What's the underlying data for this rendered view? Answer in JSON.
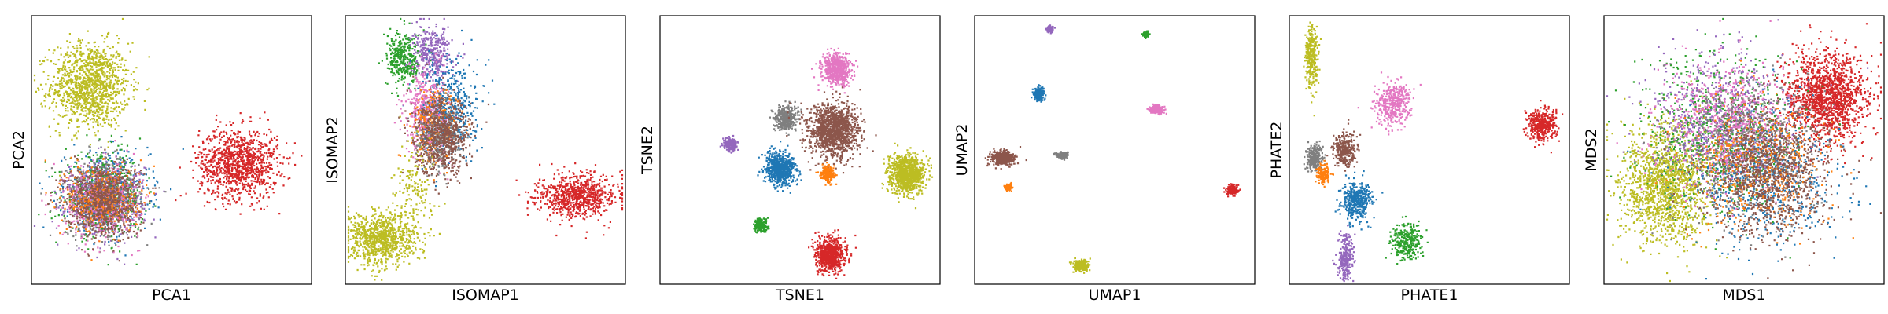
{
  "palette": {
    "blue": "#1f77b4",
    "orange": "#ff7f0e",
    "green": "#2ca02c",
    "red": "#d62728",
    "purple": "#9467bd",
    "brown": "#8c564b",
    "pink": "#e377c2",
    "gray": "#7f7f7f",
    "olive": "#bcbd22"
  },
  "chart_data": [
    {
      "type": "scatter",
      "xlabel": "PCA1",
      "ylabel": "PCA2",
      "ticks": "hidden",
      "grid": false,
      "clusters": [
        {
          "color": "olive",
          "cx": 0.21,
          "cy": 0.74,
          "sx": 0.07,
          "sy": 0.08,
          "n": 1200
        },
        {
          "color": "red",
          "cx": 0.74,
          "cy": 0.45,
          "sx": 0.07,
          "sy": 0.065,
          "n": 1100
        },
        {
          "color": "blue",
          "cx": 0.27,
          "cy": 0.34,
          "sx": 0.075,
          "sy": 0.075,
          "n": 500
        },
        {
          "color": "green",
          "cx": 0.26,
          "cy": 0.33,
          "sx": 0.07,
          "sy": 0.075,
          "n": 500
        },
        {
          "color": "purple",
          "cx": 0.26,
          "cy": 0.32,
          "sx": 0.07,
          "sy": 0.07,
          "n": 500
        },
        {
          "color": "gray",
          "cx": 0.25,
          "cy": 0.32,
          "sx": 0.07,
          "sy": 0.07,
          "n": 500
        },
        {
          "color": "pink",
          "cx": 0.25,
          "cy": 0.31,
          "sx": 0.068,
          "sy": 0.068,
          "n": 500
        },
        {
          "color": "orange",
          "cx": 0.26,
          "cy": 0.32,
          "sx": 0.065,
          "sy": 0.065,
          "n": 400
        },
        {
          "color": "brown",
          "cx": 0.25,
          "cy": 0.31,
          "sx": 0.065,
          "sy": 0.065,
          "n": 700
        }
      ]
    },
    {
      "type": "scatter",
      "xlabel": "ISOMAP1",
      "ylabel": "ISOMAP2",
      "ticks": "hidden",
      "grid": false,
      "clusters": [
        {
          "color": "green",
          "cx": 0.21,
          "cy": 0.84,
          "sx": 0.03,
          "sy": 0.05,
          "n": 350
        },
        {
          "color": "purple",
          "cx": 0.31,
          "cy": 0.86,
          "sx": 0.035,
          "sy": 0.05,
          "n": 350
        },
        {
          "color": "blue",
          "cx": 0.37,
          "cy": 0.66,
          "sx": 0.05,
          "sy": 0.09,
          "n": 500
        },
        {
          "color": "pink",
          "cx": 0.29,
          "cy": 0.64,
          "sx": 0.04,
          "sy": 0.08,
          "n": 400
        },
        {
          "color": "orange",
          "cx": 0.32,
          "cy": 0.59,
          "sx": 0.04,
          "sy": 0.07,
          "n": 250
        },
        {
          "color": "gray",
          "cx": 0.33,
          "cy": 0.55,
          "sx": 0.04,
          "sy": 0.06,
          "n": 300
        },
        {
          "color": "brown",
          "cx": 0.35,
          "cy": 0.55,
          "sx": 0.05,
          "sy": 0.07,
          "n": 700
        },
        {
          "color": "olive",
          "cx": 0.13,
          "cy": 0.17,
          "sx": 0.06,
          "sy": 0.05,
          "n": 900
        },
        {
          "color": "olive",
          "cx": 0.25,
          "cy": 0.36,
          "sx": 0.035,
          "sy": 0.09,
          "n": 150
        },
        {
          "color": "red",
          "cx": 0.83,
          "cy": 0.33,
          "sx": 0.07,
          "sy": 0.04,
          "n": 800
        }
      ]
    },
    {
      "type": "scatter",
      "xlabel": "TSNE1",
      "ylabel": "TSNE2",
      "ticks": "hidden",
      "grid": false,
      "clusters": [
        {
          "color": "pink",
          "cx": 0.63,
          "cy": 0.8,
          "sx": 0.025,
          "sy": 0.028,
          "n": 600
        },
        {
          "color": "gray",
          "cx": 0.45,
          "cy": 0.62,
          "sx": 0.02,
          "sy": 0.022,
          "n": 400
        },
        {
          "color": "brown",
          "cx": 0.62,
          "cy": 0.57,
          "sx": 0.045,
          "sy": 0.05,
          "n": 1300
        },
        {
          "color": "purple",
          "cx": 0.25,
          "cy": 0.52,
          "sx": 0.012,
          "sy": 0.013,
          "n": 200
        },
        {
          "color": "blue",
          "cx": 0.43,
          "cy": 0.43,
          "sx": 0.027,
          "sy": 0.03,
          "n": 700
        },
        {
          "color": "orange",
          "cx": 0.6,
          "cy": 0.41,
          "sx": 0.012,
          "sy": 0.014,
          "n": 200
        },
        {
          "color": "olive",
          "cx": 0.88,
          "cy": 0.41,
          "sx": 0.032,
          "sy": 0.035,
          "n": 900
        },
        {
          "color": "green",
          "cx": 0.36,
          "cy": 0.22,
          "sx": 0.012,
          "sy": 0.013,
          "n": 200
        },
        {
          "color": "red",
          "cx": 0.61,
          "cy": 0.11,
          "sx": 0.026,
          "sy": 0.03,
          "n": 700
        }
      ]
    },
    {
      "type": "scatter",
      "xlabel": "UMAP1",
      "ylabel": "UMAP2",
      "ticks": "hidden",
      "grid": false,
      "clusters": [
        {
          "color": "purple",
          "cx": 0.27,
          "cy": 0.95,
          "sx": 0.006,
          "sy": 0.006,
          "n": 100
        },
        {
          "color": "green",
          "cx": 0.61,
          "cy": 0.93,
          "sx": 0.006,
          "sy": 0.005,
          "n": 100
        },
        {
          "color": "blue",
          "cx": 0.23,
          "cy": 0.71,
          "sx": 0.01,
          "sy": 0.012,
          "n": 200
        },
        {
          "color": "pink",
          "cx": 0.65,
          "cy": 0.65,
          "sx": 0.012,
          "sy": 0.008,
          "n": 200
        },
        {
          "color": "brown",
          "cx": 0.1,
          "cy": 0.47,
          "sx": 0.02,
          "sy": 0.013,
          "n": 500
        },
        {
          "color": "gray",
          "cx": 0.31,
          "cy": 0.48,
          "sx": 0.01,
          "sy": 0.006,
          "n": 150
        },
        {
          "color": "orange",
          "cx": 0.12,
          "cy": 0.36,
          "sx": 0.006,
          "sy": 0.006,
          "n": 80
        },
        {
          "color": "red",
          "cx": 0.92,
          "cy": 0.35,
          "sx": 0.01,
          "sy": 0.01,
          "n": 200
        },
        {
          "color": "olive",
          "cx": 0.38,
          "cy": 0.07,
          "sx": 0.013,
          "sy": 0.01,
          "n": 250
        }
      ]
    },
    {
      "type": "scatter",
      "xlabel": "PHATE1",
      "ylabel": "PHATE2",
      "ticks": "hidden",
      "grid": false,
      "clusters": [
        {
          "color": "olive",
          "cx": 0.08,
          "cy": 0.84,
          "sx": 0.012,
          "sy": 0.06,
          "n": 300
        },
        {
          "color": "pink",
          "cx": 0.37,
          "cy": 0.67,
          "sx": 0.03,
          "sy": 0.04,
          "n": 400
        },
        {
          "color": "red",
          "cx": 0.9,
          "cy": 0.59,
          "sx": 0.025,
          "sy": 0.03,
          "n": 400
        },
        {
          "color": "gray",
          "cx": 0.09,
          "cy": 0.47,
          "sx": 0.015,
          "sy": 0.025,
          "n": 250
        },
        {
          "color": "brown",
          "cx": 0.2,
          "cy": 0.5,
          "sx": 0.02,
          "sy": 0.03,
          "n": 300
        },
        {
          "color": "orange",
          "cx": 0.12,
          "cy": 0.41,
          "sx": 0.012,
          "sy": 0.02,
          "n": 150
        },
        {
          "color": "blue",
          "cx": 0.24,
          "cy": 0.31,
          "sx": 0.025,
          "sy": 0.035,
          "n": 400
        },
        {
          "color": "green",
          "cx": 0.42,
          "cy": 0.16,
          "sx": 0.025,
          "sy": 0.035,
          "n": 300
        },
        {
          "color": "purple",
          "cx": 0.2,
          "cy": 0.1,
          "sx": 0.015,
          "sy": 0.04,
          "n": 250
        }
      ]
    },
    {
      "type": "scatter",
      "xlabel": "MDS1",
      "ylabel": "MDS2",
      "ticks": "hidden",
      "grid": false,
      "clusters": [
        {
          "color": "red",
          "cx": 0.8,
          "cy": 0.7,
          "sx": 0.07,
          "sy": 0.08,
          "n": 1500
        },
        {
          "color": "olive",
          "cx": 0.22,
          "cy": 0.37,
          "sx": 0.08,
          "sy": 0.11,
          "n": 1500
        },
        {
          "color": "blue",
          "cx": 0.58,
          "cy": 0.4,
          "sx": 0.12,
          "sy": 0.13,
          "n": 700
        },
        {
          "color": "green",
          "cx": 0.4,
          "cy": 0.55,
          "sx": 0.13,
          "sy": 0.14,
          "n": 700
        },
        {
          "color": "purple",
          "cx": 0.42,
          "cy": 0.62,
          "sx": 0.12,
          "sy": 0.12,
          "n": 600
        },
        {
          "color": "pink",
          "cx": 0.45,
          "cy": 0.6,
          "sx": 0.12,
          "sy": 0.12,
          "n": 700
        },
        {
          "color": "gray",
          "cx": 0.5,
          "cy": 0.5,
          "sx": 0.13,
          "sy": 0.13,
          "n": 600
        },
        {
          "color": "orange",
          "cx": 0.55,
          "cy": 0.45,
          "sx": 0.12,
          "sy": 0.12,
          "n": 500
        },
        {
          "color": "brown",
          "cx": 0.6,
          "cy": 0.42,
          "sx": 0.11,
          "sy": 0.12,
          "n": 1100
        }
      ]
    }
  ]
}
